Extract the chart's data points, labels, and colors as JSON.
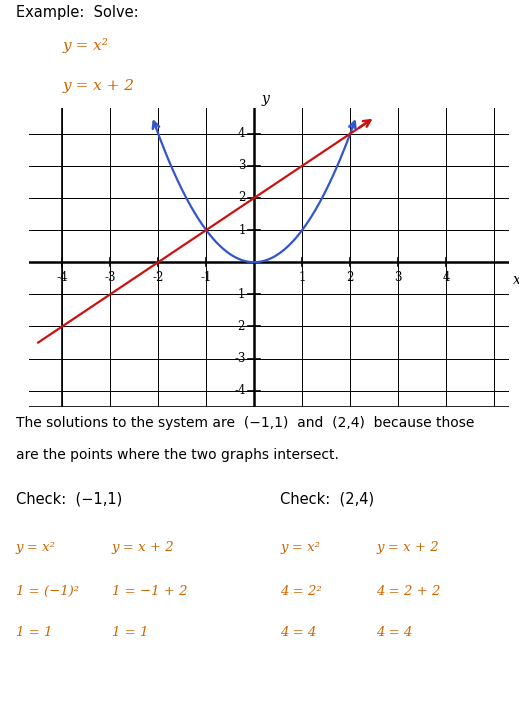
{
  "title_text": "Example:  Solve:",
  "eq1": "y = x²",
  "eq2": "y = x + 2",
  "xlim": [
    -4.7,
    5.3
  ],
  "ylim": [
    -4.5,
    4.8
  ],
  "xticks": [
    -4,
    -3,
    -2,
    -1,
    1,
    2,
    3,
    4
  ],
  "yticks": [
    -4,
    -3,
    -2,
    -1,
    1,
    2,
    3,
    4
  ],
  "parabola_color": "#3355cc",
  "line_color": "#cc1111",
  "solution_text1": "The solutions to the system are  (−1,1)  and  (2,4)  because those",
  "solution_text2": "are the points where the two graphs intersect.",
  "check1_header": "Check:  (−1,1)",
  "check2_header": "Check:  (2,4)",
  "check1_col1": [
    "y = x²",
    "1 = (−1)²",
    "1 = 1"
  ],
  "check1_col2": [
    "y = x + 2",
    "1 = −1 + 2",
    "1 = 1"
  ],
  "check2_col1": [
    "y = x²",
    "4 = 2²",
    "4 = 4"
  ],
  "check2_col2": [
    "y = x + 2",
    "4 = 2 + 2",
    "4 = 4"
  ],
  "math_color": "#cc6600",
  "text_color": "#000000",
  "background_color": "#ffffff"
}
